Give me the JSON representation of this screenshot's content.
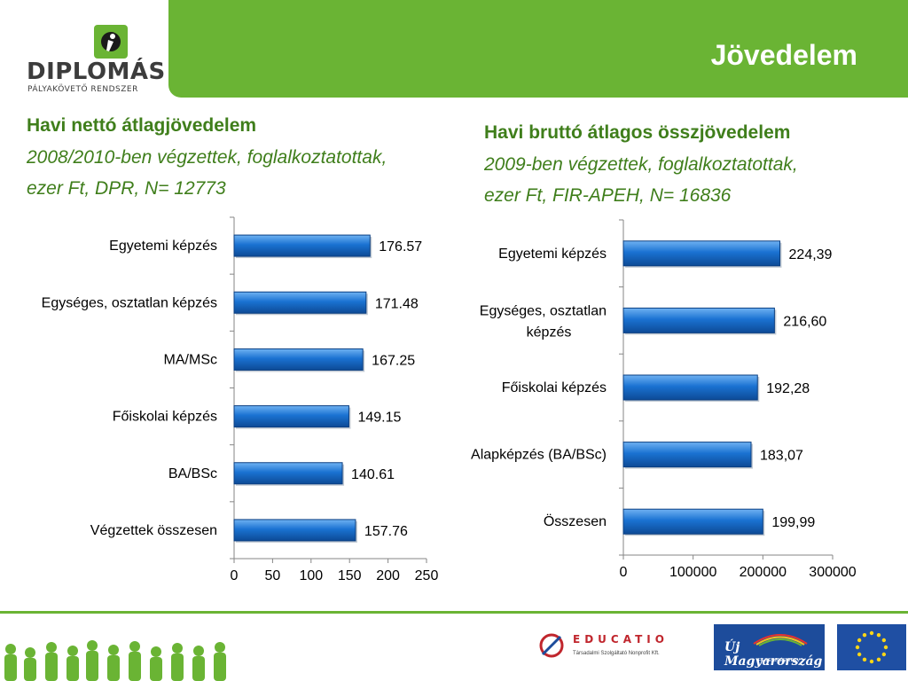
{
  "logo": {
    "word": "DIPLOMÁS",
    "subtitle": "PÁLYAKÖVETŐ RENDSZER"
  },
  "header": {
    "title": "Jövedelem"
  },
  "charts": [
    {
      "heading_line1": "Havi nettó átlagjövedelem",
      "heading_line2": "2008/2010-ben végzettek, foglalkoztatottak,",
      "heading_line3": "ezer Ft, DPR, N= 12773"
    },
    {
      "heading_line1": "Havi bruttó átlagos összjövedelem",
      "heading_line2": "2009-ben végzettek, foglalkoztatottak,",
      "heading_line3": "ezer Ft, FIR-APEH, N= 16836"
    }
  ],
  "chart_data": [
    {
      "type": "bar",
      "orientation": "horizontal",
      "categories": [
        "Egyetemi képzés",
        "Egységes, osztatlan képzés",
        "MA/MSc",
        "Főiskolai képzés",
        "BA/BSc",
        "Végzettek összesen"
      ],
      "values": [
        176.57,
        171.48,
        167.25,
        149.15,
        140.61,
        157.76
      ],
      "value_labels": [
        "176.57",
        "171.48",
        "167.25",
        "149.15",
        "140.61",
        "157.76"
      ],
      "xlim": [
        0,
        250
      ],
      "xticks": [
        "0",
        "50",
        "100",
        "150",
        "200",
        "250"
      ],
      "bar_color": "#1a72d2"
    },
    {
      "type": "bar",
      "orientation": "horizontal",
      "categories": [
        "Egyetemi képzés",
        "Egységes, osztatlan képzés",
        "Főiskolai képzés",
        "Alapképzés (BA/BSc)",
        "Összesen"
      ],
      "values": [
        224390,
        216600,
        192280,
        183070,
        199990
      ],
      "value_labels": [
        "224,39",
        "216,60",
        "192,28",
        "183,07",
        "199,99"
      ],
      "xlim": [
        0,
        300000
      ],
      "xticks": [
        "0",
        "100000",
        "200000",
        "300000"
      ],
      "bar_color": "#1a72d2"
    }
  ],
  "footer": {
    "educatio_word": "EDUCATIO",
    "educatio_sub": "Társadalmi Szolgáltató Nonprofit Kft.",
    "uj_text": "Új Magyarország",
    "uj_sub": "FEJLESZTÉSI TERV"
  },
  "colors": {
    "accent_green": "#6ab434",
    "heading_green": "#3f7e1b",
    "bar_blue": "#1a72d2"
  }
}
